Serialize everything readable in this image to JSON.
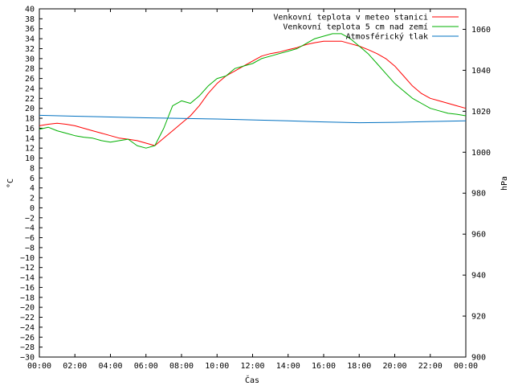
{
  "chart_data": {
    "type": "line",
    "title": "",
    "xlabel": "Čas",
    "ylabel": "°C",
    "y2label": "hPa",
    "xlim": [
      0,
      24
    ],
    "ylim": [
      -30,
      40
    ],
    "y2lim": [
      900,
      1070
    ],
    "x_ticks": [
      "00:00",
      "02:00",
      "04:00",
      "06:00",
      "08:00",
      "10:00",
      "12:00",
      "14:00",
      "16:00",
      "18:00",
      "20:00",
      "22:00",
      "00:00"
    ],
    "y_ticks": [
      -30,
      -28,
      -26,
      -24,
      -22,
      -20,
      -18,
      -16,
      -14,
      -12,
      -10,
      -8,
      -6,
      -4,
      -2,
      0,
      2,
      4,
      6,
      8,
      10,
      12,
      14,
      16,
      18,
      20,
      22,
      24,
      26,
      28,
      30,
      32,
      34,
      36,
      38,
      40
    ],
    "y2_ticks": [
      900,
      920,
      940,
      960,
      980,
      1000,
      1020,
      1040,
      1060
    ],
    "grid": false,
    "legend_position": "top-right",
    "series": [
      {
        "name": "Venkovní teplota v meteo stanici",
        "color": "#ff0000",
        "axis": "y",
        "x": [
          0,
          0.5,
          1,
          1.5,
          2,
          2.5,
          3,
          3.5,
          4,
          4.5,
          5,
          5.5,
          6,
          6.5,
          7,
          7.5,
          8,
          8.5,
          9,
          9.5,
          10,
          10.5,
          11,
          11.5,
          12,
          12.5,
          13,
          13.5,
          14,
          14.5,
          15,
          15.5,
          16,
          16.5,
          17,
          17.5,
          18,
          18.5,
          19,
          19.5,
          20,
          20.5,
          21,
          21.5,
          22,
          22.5,
          23,
          23.5,
          24
        ],
        "y": [
          16.5,
          16.8,
          17,
          16.8,
          16.5,
          16,
          15.5,
          15,
          14.5,
          14,
          13.8,
          13.5,
          13,
          12.5,
          14,
          15.5,
          17,
          18.5,
          20.5,
          23,
          25,
          26.5,
          27.5,
          28.5,
          29.5,
          30.5,
          31,
          31.3,
          31.8,
          32.2,
          32.8,
          33.2,
          33.5,
          33.5,
          33.5,
          33,
          32.5,
          31.8,
          31,
          30,
          28.5,
          26.5,
          24.5,
          23,
          22,
          21.5,
          21,
          20.5,
          20
        ]
      },
      {
        "name": "Venkovní teplota 5 cm nad zemí",
        "color": "#00b000",
        "axis": "y",
        "x": [
          0,
          0.5,
          1,
          1.5,
          2,
          2.5,
          3,
          3.5,
          4,
          4.5,
          5,
          5.5,
          6,
          6.5,
          7,
          7.5,
          8,
          8.5,
          9,
          9.5,
          10,
          10.5,
          11,
          11.5,
          12,
          12.5,
          13,
          13.5,
          14,
          14.5,
          15,
          15.5,
          16,
          16.5,
          17,
          17.5,
          18,
          18.5,
          19,
          19.5,
          20,
          20.5,
          21,
          21.5,
          22,
          22.5,
          23,
          23.5,
          24
        ],
        "y": [
          15.8,
          16.2,
          15.5,
          15,
          14.5,
          14.2,
          14,
          13.5,
          13.2,
          13.5,
          13.8,
          12.5,
          12,
          12.5,
          16,
          20.5,
          21.5,
          21,
          22.5,
          24.5,
          26,
          26.5,
          28,
          28.5,
          29,
          30,
          30.5,
          31,
          31.5,
          32,
          33,
          34,
          34.5,
          35,
          35,
          34,
          32.5,
          31,
          29,
          27,
          25,
          23.5,
          22,
          21,
          20,
          19.5,
          19,
          18.8,
          18.5
        ]
      },
      {
        "name": "Atmosférický tlak",
        "color": "#0070c0",
        "axis": "y2",
        "x": [
          0,
          2,
          4,
          6,
          8,
          10,
          12,
          14,
          16,
          18,
          20,
          22,
          24
        ],
        "y": [
          1018,
          1017.6,
          1017.2,
          1016.8,
          1016.5,
          1016.2,
          1015.8,
          1015.3,
          1014.8,
          1014.4,
          1014.6,
          1015,
          1015.3
        ]
      }
    ]
  }
}
